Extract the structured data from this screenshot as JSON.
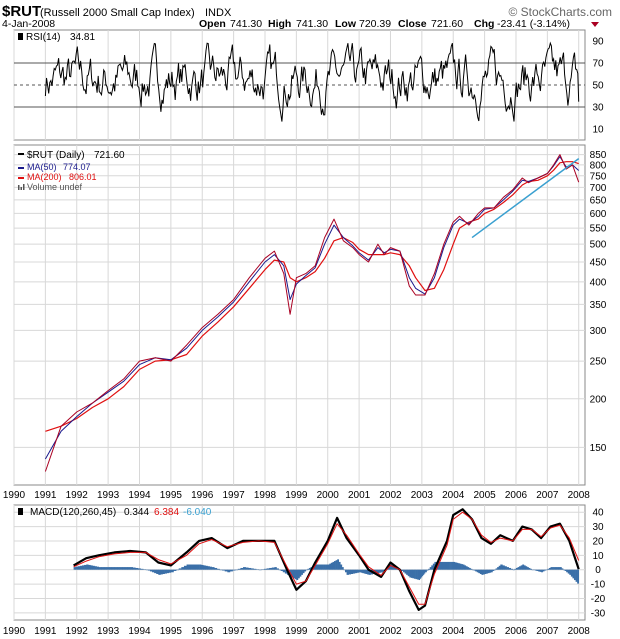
{
  "header": {
    "symbol": "$RUT",
    "name": "(Russell 2000 Small Cap Index)",
    "exchange": "INDX",
    "brand": "© StockCharts.com",
    "date": "4-Jan-2008",
    "open_label": "Open",
    "open": "741.30",
    "high_label": "High",
    "high": "741.30",
    "low_label": "Low",
    "low": "720.39",
    "close_label": "Close",
    "close": "721.60",
    "chg_label": "Chg",
    "chg": "-23.41 (-3.14%)"
  },
  "colors": {
    "price": "#aa0022",
    "ma50": "#1a1a8c",
    "ma200": "#e01010",
    "trendline": "#3aa0d0",
    "rsi": "#000000",
    "macd": "#000000",
    "signal": "#e01010",
    "histogram": "#3a6fa8",
    "grid": "#d8d8d8",
    "down_arrow": "#aa0022"
  },
  "rsi": {
    "label": "RSI(14)",
    "value": "34.81",
    "ticks": [
      "90",
      "70",
      "50",
      "30",
      "10"
    ]
  },
  "price_legend": {
    "symbol_label": "$RUT (Daily)",
    "symbol_value": "721.60",
    "ma50_label": "MA(50)",
    "ma50_value": "774.07",
    "ma200_label": "MA(200)",
    "ma200_value": "806.01",
    "volume_label": "Volume undef"
  },
  "macd": {
    "label": "MACD(120,260,45)",
    "value": "0.344",
    "signal_value": "6.384",
    "hist_value": "-6.040",
    "ticks": [
      "40",
      "30",
      "20",
      "10",
      "0",
      "-10",
      "-20",
      "-30"
    ]
  },
  "x_axis_labels": [
    "1990",
    "1991",
    "1992",
    "1993",
    "1994",
    "1995",
    "1996",
    "1997",
    "1998",
    "1999",
    "2000",
    "2001",
    "2002",
    "2003",
    "2004",
    "2005",
    "2006",
    "2007",
    "2008"
  ],
  "chart_data": [
    {
      "type": "line",
      "title": "RSI(14)",
      "ylim": [
        0,
        100
      ],
      "reference_lines": [
        70,
        50,
        30
      ],
      "latest": 34.81
    },
    {
      "type": "line",
      "title": "$RUT (Russell 2000 Small Cap Index)",
      "y_scale": "log",
      "ylim": [
        120,
        900
      ],
      "y_ticks": [
        150,
        200,
        250,
        300,
        350,
        400,
        450,
        500,
        550,
        600,
        650,
        700,
        750,
        800,
        850
      ],
      "x": [
        1991.0,
        1991.5,
        1992.0,
        1992.5,
        1993.0,
        1993.5,
        1994.0,
        1994.5,
        1995.0,
        1995.5,
        1996.0,
        1996.5,
        1997.0,
        1997.5,
        1998.0,
        1998.3,
        1998.6,
        1998.8,
        1999.0,
        1999.3,
        1999.6,
        1999.9,
        2000.2,
        2000.5,
        2000.8,
        2001.0,
        2001.3,
        2001.6,
        2001.8,
        2002.0,
        2002.3,
        2002.6,
        2002.8,
        2003.1,
        2003.4,
        2003.7,
        2004.0,
        2004.2,
        2004.5,
        2004.8,
        2005.0,
        2005.3,
        2005.6,
        2005.9,
        2006.2,
        2006.4,
        2006.7,
        2007.0,
        2007.2,
        2007.4,
        2007.6,
        2007.8,
        2008.0
      ],
      "series": [
        {
          "name": "$RUT (Daily)",
          "values": [
            130,
            170,
            185,
            195,
            210,
            225,
            250,
            255,
            250,
            275,
            305,
            330,
            360,
            410,
            460,
            480,
            420,
            330,
            410,
            420,
            440,
            520,
            580,
            510,
            490,
            470,
            450,
            500,
            470,
            490,
            480,
            390,
            370,
            370,
            420,
            500,
            570,
            590,
            560,
            600,
            620,
            620,
            660,
            690,
            740,
            720,
            740,
            760,
            800,
            850,
            780,
            800,
            722
          ]
        },
        {
          "name": "MA(50)",
          "values": [
            140,
            165,
            180,
            195,
            208,
            222,
            245,
            255,
            252,
            270,
            300,
            325,
            355,
            400,
            450,
            470,
            440,
            360,
            395,
            415,
            435,
            500,
            560,
            520,
            495,
            475,
            455,
            490,
            475,
            485,
            480,
            410,
            385,
            372,
            410,
            490,
            560,
            580,
            565,
            590,
            615,
            620,
            650,
            685,
            730,
            725,
            740,
            760,
            795,
            840,
            790,
            800,
            774
          ]
        },
        {
          "name": "MA(200)",
          "values": [
            165,
            170,
            178,
            190,
            200,
            215,
            238,
            250,
            252,
            260,
            290,
            315,
            345,
            385,
            430,
            455,
            450,
            410,
            400,
            410,
            425,
            460,
            510,
            520,
            505,
            485,
            470,
            470,
            470,
            475,
            470,
            440,
            410,
            380,
            385,
            430,
            500,
            550,
            570,
            580,
            600,
            615,
            640,
            670,
            710,
            725,
            730,
            750,
            775,
            810,
            815,
            815,
            806
          ]
        }
      ],
      "trendline": {
        "x": [
          2004.6,
          2008.0
        ],
        "y": [
          520,
          830
        ]
      }
    },
    {
      "type": "line",
      "title": "MACD(120,260,45)",
      "ylim": [
        -35,
        45
      ],
      "y_ticks": [
        40,
        30,
        20,
        10,
        0,
        -10,
        -20,
        -30
      ],
      "x": [
        1991.9,
        1992.3,
        1992.7,
        1993.2,
        1993.7,
        1994.2,
        1994.6,
        1995.0,
        1995.5,
        1995.9,
        1996.3,
        1996.8,
        1997.3,
        1997.8,
        1998.3,
        1998.7,
        1999.0,
        1999.3,
        1999.6,
        2000.0,
        2000.3,
        2000.6,
        2001.0,
        2001.3,
        2001.7,
        2002.0,
        2002.3,
        2002.6,
        2002.9,
        2003.1,
        2003.4,
        2003.8,
        2004.0,
        2004.3,
        2004.6,
        2004.9,
        2005.2,
        2005.5,
        2005.9,
        2006.2,
        2006.5,
        2006.8,
        2007.1,
        2007.4,
        2007.7,
        2008.0
      ],
      "series": [
        {
          "name": "MACD",
          "values": [
            3,
            8,
            10,
            12,
            13,
            12,
            5,
            3,
            12,
            20,
            22,
            15,
            20,
            20,
            20,
            0,
            -14,
            -8,
            5,
            20,
            36,
            22,
            10,
            0,
            -5,
            5,
            0,
            -15,
            -28,
            -25,
            0,
            20,
            38,
            42,
            35,
            22,
            18,
            24,
            20,
            30,
            28,
            22,
            30,
            32,
            20,
            0.344
          ]
        },
        {
          "name": "Signal",
          "values": [
            2,
            6,
            9,
            11,
            12,
            12,
            7,
            4,
            10,
            18,
            21,
            16,
            19,
            20,
            19,
            2,
            -10,
            -8,
            3,
            18,
            32,
            24,
            11,
            2,
            -4,
            3,
            0,
            -12,
            -24,
            -24,
            -3,
            17,
            35,
            40,
            35,
            24,
            19,
            22,
            20,
            28,
            28,
            23,
            29,
            31,
            22,
            6.384
          ]
        }
      ]
    }
  ]
}
